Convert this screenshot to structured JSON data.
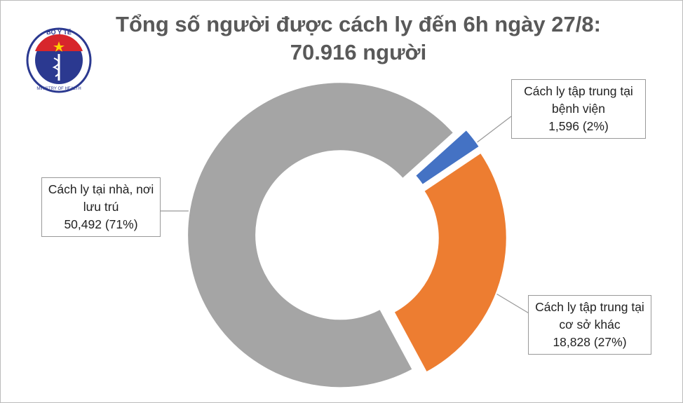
{
  "logo": {
    "top_text": "BỘ Y TẾ",
    "bottom_text": "MINISTRY OF HEALTH"
  },
  "chart_data": {
    "type": "donut",
    "title": "Tổng số người được cách ly đến 6h ngày 27/8: 70.916 người",
    "categories": [
      "Cách ly tập trung tại bệnh viện",
      "Cách ly tập trung tại cơ sở khác",
      "Cách ly tại nhà, nơi lưu trú"
    ],
    "values": [
      1596,
      18828,
      50492
    ],
    "value_labels": [
      "1,596 (2%)",
      "18,828 (27%)",
      "50,492 (71%)"
    ],
    "colors": [
      "#4472c4",
      "#ed7d31",
      "#a5a5a5"
    ]
  }
}
